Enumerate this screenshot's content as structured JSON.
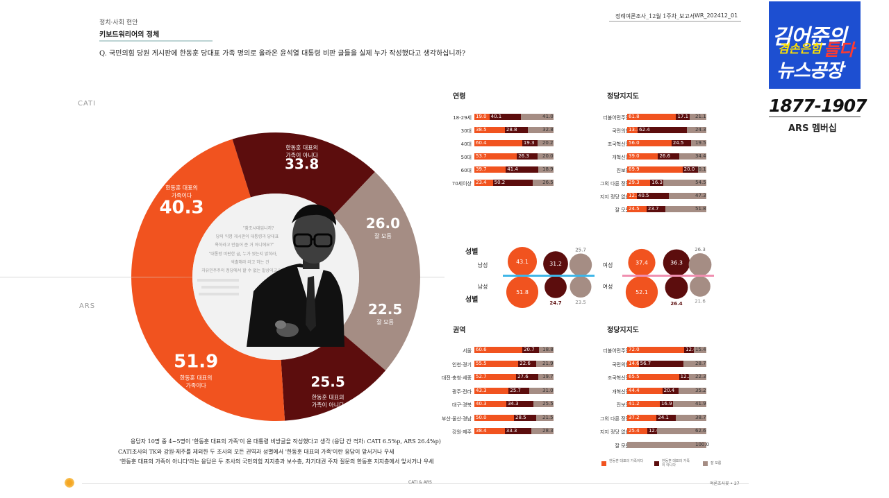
{
  "header": {
    "category": "정치·사회 현안",
    "title": "키보드워리어의 정체",
    "question": "Q. 국민의힘 당원 게시판에 한동훈 당대표 가족 명의로 올라온 윤석열 대통령 비판 글들을 실제 누가 작성했다고 생각하십니까?",
    "report": "정례여론조사_12월 1주차_보고서",
    "code": "WR_202412_01"
  },
  "labels": {
    "cati": "CATI",
    "ars": "ARS"
  },
  "colors": {
    "orange": "#f1531f",
    "maroon": "#5c0d0d",
    "taupe": "#a58d84",
    "cyan": "#3fb6e8",
    "pink": "#f08fb0"
  },
  "quote": {
    "l1": "\"황조시대입니까?",
    "l2": "당의 익명 게시판이 대통령과 당대표",
    "l3": "욕하라고 만들어 준 거 아니에요?\"",
    "l4": "\"대통령 비판한 글, 누가 썼는지 밝혀라,",
    "l5": "색출해라 라고 하는 건",
    "l6": "자유민주주의 정당에서 할 수 없는 발상이고.\""
  },
  "footer": {
    "l1": "응답자 10명 중 4~5명이 '한동훈 대표의 가족'이 윤 대통령 비방글을 작성했다고 생각 (응답 간 격차: CATI 6.5%p, ARS 26.4%p)",
    "l2": "CATI조사의 TK와 강원·제주를 제외한 두 조사의 모든 권역과 성별에서 '한동훈 대표의 가족'이란 응답이 앞서거나 우세",
    "l3": "'한동훈 대표의 가족이 아니다'라는 응답은 두 조사의 국민의힘 지지층과 보수층, 차기대권 주자 질문의 한동훈 지지층에서 앞서거나 우세",
    "center": "CATI & ARS",
    "page": "여론조사꽃 • 27"
  },
  "logo": {
    "line1": "김어준의",
    "line2a": "겸손은힘",
    "line2b": "들다",
    "line3": "뉴스공장",
    "phone": "1877-1907",
    "member": "ARS 멤버십"
  },
  "chart_data": [
    {
      "type": "pie",
      "name": "CATI",
      "slices": [
        {
          "label": "한동훈 대표의 가족이다",
          "value": 40.3
        },
        {
          "label": "한동훈 대표의 가족이 아니다",
          "value": 33.8
        },
        {
          "label": "잘 모름",
          "value": 26.0
        }
      ]
    },
    {
      "type": "pie",
      "name": "ARS",
      "slices": [
        {
          "label": "한동훈 대표의 가족이다",
          "value": 51.9
        },
        {
          "label": "한동훈 대표의 가족이 아니다",
          "value": 25.5
        },
        {
          "label": "잘 모름",
          "value": 22.5
        }
      ]
    },
    {
      "type": "bar",
      "title": "연령",
      "categories": [
        "18-29세",
        "30대",
        "40대",
        "50대",
        "60대",
        "70세이상"
      ],
      "series": [
        {
          "name": "한동훈 대표의 가족이다",
          "values": [
            19.0,
            38.5,
            60.4,
            53.7,
            39.7,
            23.4
          ]
        },
        {
          "name": "한동훈 대표의 가족이 아니다",
          "values": [
            40.1,
            28.8,
            19.3,
            26.3,
            41.4,
            50.2
          ]
        },
        {
          "name": "잘 모름",
          "values": [
            41.0,
            32.8,
            20.2,
            20.0,
            18.9,
            26.5
          ]
        }
      ]
    },
    {
      "type": "bar",
      "title": "정당지지도",
      "categories": [
        "더불어민주당",
        "국민의힘",
        "조국혁신당",
        "개혁신당",
        "진보당",
        "그외 다른 정당",
        "지지 정당 없음",
        "잘 모름"
      ],
      "series": [
        {
          "name": "한동훈 대표의 가족이다",
          "values": [
            61.8,
            13.3,
            56.0,
            39.0,
            69.9,
            29.3,
            12.2,
            24.5
          ]
        },
        {
          "name": "한동훈 대표의 가족이 아니다",
          "values": [
            17.1,
            62.4,
            24.5,
            26.6,
            20.0,
            16.3,
            40.5,
            23.7
          ]
        },
        {
          "name": "잘 모름",
          "values": [
            21.1,
            24.3,
            19.5,
            34.4,
            10.1,
            54.5,
            47.3,
            51.8
          ]
        }
      ]
    },
    {
      "type": "bubble",
      "title": "성별",
      "groups": [
        {
          "label": "남성",
          "cati": [
            43.1,
            31.2,
            25.7
          ],
          "ars": [
            51.8,
            24.7,
            23.5
          ]
        },
        {
          "label": "여성",
          "cati": [
            37.4,
            36.3,
            26.3
          ],
          "ars": [
            52.1,
            26.4,
            21.6
          ]
        }
      ]
    },
    {
      "type": "bar",
      "title": "권역",
      "categories": [
        "서울",
        "인천·경기",
        "대전·충청·세종",
        "광주·전라",
        "대구·경북",
        "부산·울산·경남",
        "강원·제주"
      ],
      "series": [
        {
          "name": "한동훈 대표의 가족이다",
          "values": [
            60.6,
            55.5,
            52.7,
            43.3,
            40.3,
            50.0,
            38.4
          ]
        },
        {
          "name": "한동훈 대표의 가족이 아니다",
          "values": [
            20.7,
            22.6,
            27.6,
            25.7,
            34.3,
            28.5,
            33.3
          ]
        },
        {
          "name": "잘 모름",
          "values": [
            18.8,
            21.9,
            19.7,
            31.0,
            25.5,
            21.5,
            28.3
          ]
        }
      ]
    },
    {
      "type": "bar",
      "title": "정당지지도",
      "categories": [
        "더불어민주당",
        "국민의힘",
        "조국혁신당",
        "개혁신당",
        "진보당",
        "그외 다른 정당",
        "지지 정당 없음",
        "잘 모름"
      ],
      "series": [
        {
          "name": "한동훈 대표의 가족이다",
          "values": [
            72.0,
            14.6,
            65.5,
            44.4,
            41.2,
            37.2,
            25.4,
            0
          ]
        },
        {
          "name": "한동훈 대표의 가족이 아니다",
          "values": [
            12.6,
            56.7,
            12.2,
            20.4,
            16.9,
            24.1,
            12.0,
            0
          ]
        },
        {
          "name": "잘 모름",
          "values": [
            15.4,
            28.7,
            22.3,
            35.2,
            41.9,
            38.7,
            62.6,
            100.0
          ]
        }
      ]
    }
  ]
}
